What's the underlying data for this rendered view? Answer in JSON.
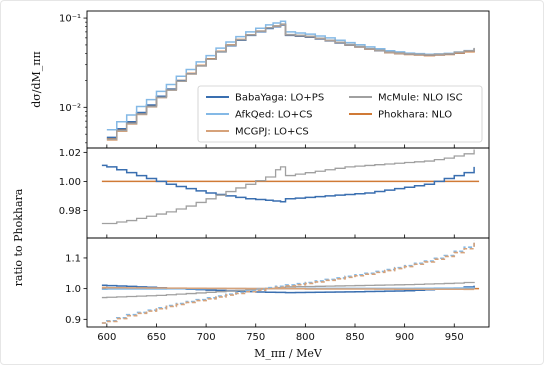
{
  "chart_data": {
    "type": "line",
    "style": "step",
    "x_unit": "MeV",
    "xlim": [
      580,
      985
    ],
    "xticks": [
      600,
      650,
      700,
      750,
      800,
      850,
      900,
      950
    ],
    "xlabel": "M_ππ / MeV",
    "shared_ylabel": "ratio to Phokhara",
    "colors": {
      "BabaYaga: LO+PS": "#3a6fb0",
      "AfkQed: LO+CS": "#84b9e6",
      "MCGPJ: LO+CS": "#d6a27a",
      "McMule: NLO ISC": "#a0a0a0",
      "Phokhara: NLO": "#d07a36"
    },
    "panels": [
      {
        "id": "top",
        "ylabel": "dσ/dM_ππ",
        "yscale": "log",
        "ylim": [
          0.0035,
          0.12
        ],
        "yticks": [
          {
            "value": 0.01,
            "label": "10⁻²"
          },
          {
            "value": 0.1,
            "label": "10⁻¹"
          }
        ],
        "legend": {
          "placement": "lower-right",
          "entries": [
            "BabaYaga: LO+PS",
            "McMule: NLO ISC",
            "AfkQed: LO+CS",
            "Phokhara: NLO",
            "MCGPJ: LO+CS"
          ]
        },
        "series": [
          {
            "name": "Phokhara: NLO",
            "linestyle": "solid",
            "x": [
              600,
              620,
              640,
              660,
              680,
              700,
              720,
              740,
              760,
              775,
              780,
              800,
              820,
              840,
              860,
              880,
              900,
              920,
              940,
              960,
              970
            ],
            "y": [
              0.0045,
              0.0068,
              0.0105,
              0.016,
              0.024,
              0.035,
              0.05,
              0.065,
              0.078,
              0.085,
              0.065,
              0.062,
              0.056,
              0.05,
              0.045,
              0.041,
              0.039,
              0.038,
              0.039,
              0.042,
              0.045
            ]
          },
          {
            "name": "BabaYaga: LO+PS",
            "linestyle": "solid",
            "x": [
              600,
              620,
              640,
              660,
              680,
              700,
              720,
              740,
              760,
              775,
              780,
              800,
              820,
              840,
              860,
              880,
              900,
              920,
              940,
              960,
              970
            ],
            "y": [
              0.0046,
              0.0069,
              0.0106,
              0.016,
              0.0238,
              0.0345,
              0.049,
              0.064,
              0.0765,
              0.0835,
              0.064,
              0.061,
              0.0555,
              0.0497,
              0.045,
              0.0412,
              0.0393,
              0.0384,
              0.0395,
              0.0428,
              0.0458
            ]
          },
          {
            "name": "AfkQed: LO+CS",
            "linestyle": "solid",
            "x": [
              600,
              620,
              640,
              660,
              680,
              700,
              720,
              740,
              760,
              775,
              780,
              800,
              820,
              840,
              860,
              880,
              900,
              920,
              940,
              960,
              970
            ],
            "y": [
              0.0056,
              0.0082,
              0.0122,
              0.018,
              0.0265,
              0.038,
              0.054,
              0.07,
              0.084,
              0.092,
              0.07,
              0.066,
              0.06,
              0.053,
              0.0475,
              0.043,
              0.0405,
              0.0393,
              0.0402,
              0.0432,
              0.046
            ]
          },
          {
            "name": "MCGPJ: LO+CS",
            "linestyle": "solid",
            "x": [
              600,
              620,
              640,
              660,
              680,
              700,
              720,
              740,
              760,
              775,
              780,
              800,
              820,
              840,
              860,
              880,
              900,
              920,
              940,
              960,
              970
            ],
            "y": [
              0.0043,
              0.0065,
              0.0101,
              0.0156,
              0.0236,
              0.0346,
              0.0497,
              0.0648,
              0.0778,
              0.0849,
              0.065,
              0.062,
              0.0561,
              0.0502,
              0.0452,
              0.0413,
              0.0394,
              0.0385,
              0.0396,
              0.0428,
              0.0455
            ]
          },
          {
            "name": "McMule: NLO ISC",
            "linestyle": "solid",
            "x": [
              600,
              620,
              640,
              660,
              680,
              700,
              720,
              740,
              760,
              775,
              780,
              800,
              820,
              840,
              860,
              880,
              900,
              920,
              940,
              960,
              970
            ],
            "y": [
              0.0044,
              0.0066,
              0.0102,
              0.0156,
              0.0236,
              0.0346,
              0.0496,
              0.0648,
              0.0778,
              0.0857,
              0.0655,
              0.0626,
              0.0566,
              0.0507,
              0.0456,
              0.0417,
              0.0397,
              0.0388,
              0.0399,
              0.0432,
              0.0463
            ]
          }
        ]
      },
      {
        "id": "middle",
        "ylabel": "",
        "yscale": "linear",
        "ylim": [
          0.961,
          1.023
        ],
        "yticks": [
          {
            "value": 0.98,
            "label": "0.98"
          },
          {
            "value": 1.0,
            "label": "1.00"
          },
          {
            "value": 1.02,
            "label": "1.02"
          }
        ],
        "series": [
          {
            "name": "Phokhara: NLO",
            "linestyle": "solid",
            "x": [
              595,
              975
            ],
            "y": [
              1.0,
              1.0
            ]
          },
          {
            "name": "BabaYaga: LO+PS",
            "linestyle": "solid",
            "x": [
              595,
              600,
              620,
              640,
              660,
              680,
              700,
              720,
              740,
              760,
              775,
              780,
              800,
              820,
              840,
              860,
              880,
              900,
              920,
              940,
              960,
              970
            ],
            "y": [
              1.011,
              1.01,
              1.006,
              1.002,
              0.998,
              0.995,
              0.992,
              0.99,
              0.988,
              0.987,
              0.986,
              0.988,
              0.989,
              0.99,
              0.991,
              0.992,
              0.994,
              0.996,
              0.998,
              1.002,
              1.006,
              1.01
            ]
          },
          {
            "name": "McMule: NLO ISC",
            "linestyle": "solid",
            "x": [
              595,
              600,
              620,
              640,
              660,
              680,
              700,
              720,
              740,
              760,
              770,
              775,
              780,
              800,
              820,
              840,
              860,
              880,
              900,
              920,
              940,
              960,
              970
            ],
            "y": [
              0.971,
              0.971,
              0.973,
              0.976,
              0.979,
              0.983,
              0.988,
              0.993,
              0.998,
              1.003,
              1.008,
              1.01,
              1.004,
              1.006,
              1.008,
              1.01,
              1.011,
              1.012,
              1.013,
              1.014,
              1.016,
              1.019,
              1.022
            ]
          }
        ]
      },
      {
        "id": "bottom",
        "ylabel": "",
        "yscale": "linear",
        "ylim": [
          0.875,
          1.165
        ],
        "yticks": [
          {
            "value": 0.9,
            "label": "0.9"
          },
          {
            "value": 1.0,
            "label": "1.0"
          },
          {
            "value": 1.1,
            "label": "1.1"
          }
        ],
        "series": [
          {
            "name": "Phokhara: NLO",
            "linestyle": "solid",
            "x": [
              595,
              975
            ],
            "y": [
              1.0,
              1.0
            ]
          },
          {
            "name": "BabaYaga: LO+PS",
            "linestyle": "solid",
            "x": [
              595,
              600,
              650,
              700,
              750,
              780,
              800,
              850,
              900,
              950,
              970
            ],
            "y": [
              1.011,
              1.01,
              1.003,
              0.995,
              0.989,
              0.987,
              0.988,
              0.99,
              0.993,
              1.001,
              1.01
            ]
          },
          {
            "name": "McMule: NLO ISC",
            "linestyle": "solid",
            "x": [
              595,
              600,
              650,
              700,
              750,
              780,
              800,
              850,
              900,
              950,
              970
            ],
            "y": [
              0.971,
              0.972,
              0.978,
              0.988,
              0.998,
              1.006,
              1.007,
              1.01,
              1.013,
              1.018,
              1.022
            ]
          },
          {
            "name": "AfkQed: LO+CS",
            "linestyle": "solid",
            "x": [
              595,
              600,
              650,
              700,
              750,
              780,
              800,
              850,
              900,
              950,
              970
            ],
            "y": [
              0.998,
              0.999,
              0.999,
              1.0,
              1.0,
              1.0,
              1.001,
              1.001,
              1.001,
              1.002,
              1.003
            ]
          },
          {
            "name": "MCGPJ: LO+CS",
            "linestyle": "solid",
            "x": [
              595,
              600,
              650,
              700,
              750,
              780,
              800,
              850,
              900,
              950,
              970
            ],
            "y": [
              1.004,
              1.003,
              1.002,
              1.001,
              1.0,
              1.0,
              0.999,
              0.999,
              0.998,
              0.998,
              0.997
            ]
          },
          {
            "name": "AfkQed: LO+CS",
            "linestyle": "dashed",
            "x": [
              595,
              600,
              620,
              640,
              660,
              680,
              700,
              720,
              740,
              760,
              780,
              800,
              820,
              840,
              860,
              880,
              900,
              920,
              940,
              960,
              970
            ],
            "y": [
              0.888,
              0.895,
              0.915,
              0.93,
              0.945,
              0.958,
              0.97,
              0.982,
              0.993,
              1.003,
              1.012,
              1.02,
              1.03,
              1.04,
              1.05,
              1.062,
              1.075,
              1.09,
              1.108,
              1.135,
              1.158
            ]
          },
          {
            "name": "MCGPJ: LO+CS",
            "linestyle": "dashed",
            "x": [
              595,
              600,
              620,
              640,
              660,
              680,
              700,
              720,
              740,
              760,
              780,
              800,
              820,
              840,
              860,
              880,
              900,
              920,
              940,
              960,
              970
            ],
            "y": [
              0.888,
              0.893,
              0.912,
              0.927,
              0.942,
              0.955,
              0.967,
              0.979,
              0.99,
              1.0,
              1.009,
              1.017,
              1.027,
              1.037,
              1.047,
              1.059,
              1.072,
              1.087,
              1.105,
              1.13,
              1.153
            ]
          }
        ]
      }
    ]
  }
}
